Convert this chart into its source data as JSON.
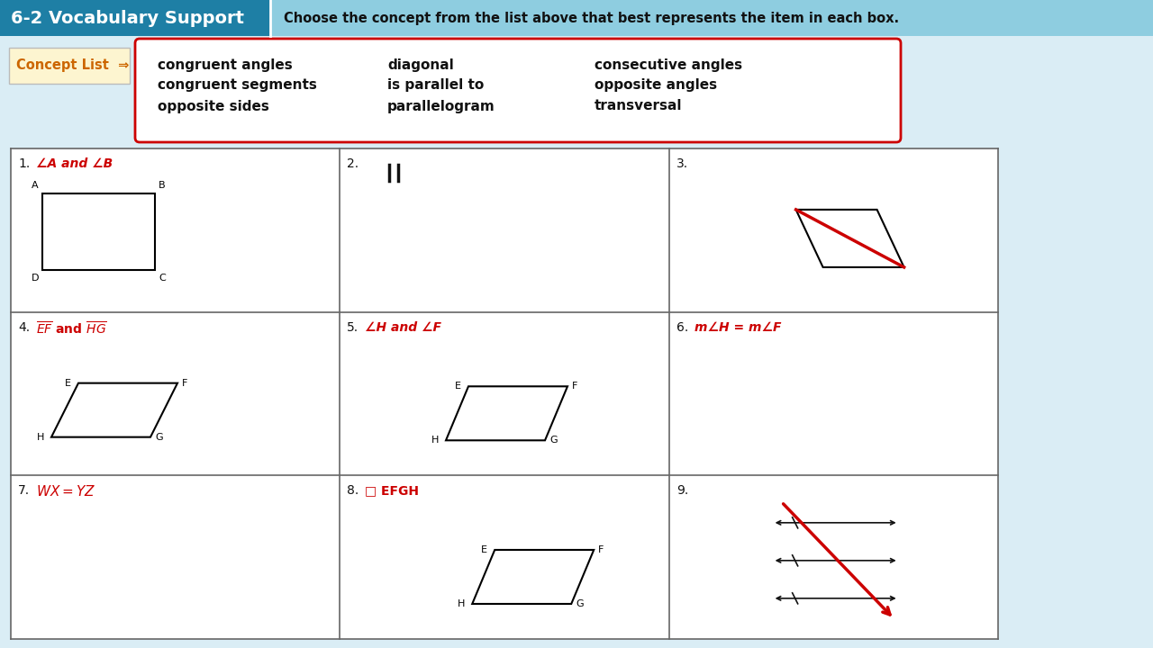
{
  "title_left": "6-2 Vocabulary Support",
  "title_right": "Choose the concept from the list above that best represents the item in each box.",
  "header_bg_left": "#2a7fa8",
  "header_bg_right": "#8cc8dc",
  "concepts": [
    [
      "congruent angles",
      "diagonal",
      "consecutive angles"
    ],
    [
      "congruent segments",
      "is parallel to",
      "opposite angles"
    ],
    [
      "opposite sides",
      "parallelogram",
      "transversal"
    ]
  ],
  "red": "#cc0000",
  "black": "#111111",
  "grid_color": "#666666",
  "bg_color": "#daedf5"
}
